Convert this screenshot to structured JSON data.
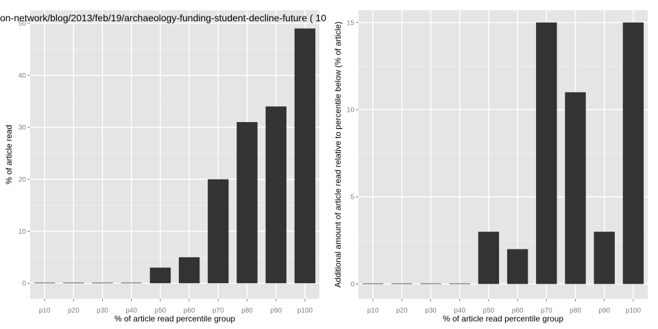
{
  "colors": {
    "panel_bg": "#E5E5E5",
    "grid_major": "#FFFFFF",
    "grid_minor": "#F2F2F2",
    "bar": "#333333",
    "tick_text": "#7F7F7F",
    "label_text": "#000000"
  },
  "chart_data": [
    {
      "type": "bar",
      "title": "on-network/blog/2013/feb/19/archaeology-funding-student-decline-future ( 10",
      "xlabel": "% of article read percentile group",
      "ylabel": "% of article read",
      "categories": [
        "p10",
        "p20",
        "p30",
        "p40",
        "p50",
        "p60",
        "p70",
        "p80",
        "p90",
        "p100"
      ],
      "values": [
        0,
        0,
        0,
        0,
        3,
        5,
        20,
        31,
        34,
        49
      ],
      "ylim": [
        -3,
        52.5
      ],
      "yticks": [
        0,
        10,
        20,
        30,
        40,
        50
      ],
      "grid": true
    },
    {
      "type": "bar",
      "title": "",
      "xlabel": "% of article read percentile group",
      "ylabel": "Additional amount of article read relative to percentile below (% of article)",
      "categories": [
        "p10",
        "p20",
        "p30",
        "p40",
        "p50",
        "p60",
        "p70",
        "p80",
        "p90",
        "p100"
      ],
      "values": [
        0,
        0,
        0,
        0,
        3,
        2,
        15,
        11,
        3,
        15
      ],
      "ylim": [
        -0.85,
        15.7
      ],
      "yticks": [
        0,
        5,
        10,
        15
      ],
      "grid": true
    }
  ]
}
